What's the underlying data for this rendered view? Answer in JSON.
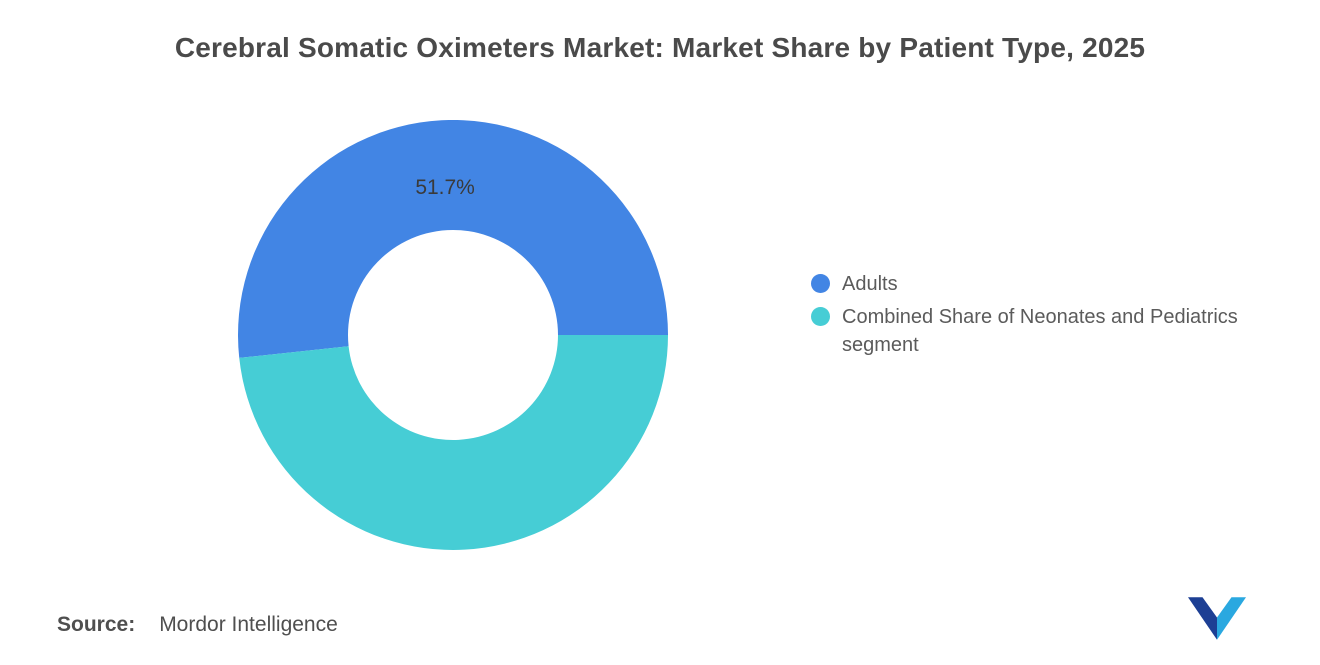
{
  "title": "Cerebral Somatic Oximeters Market: Market Share by Patient Type, 2025",
  "chart_data": {
    "type": "pie",
    "subtype": "donut",
    "categories": [
      "Adults",
      "Combined Share of Neonates and Pediatrics segment"
    ],
    "values": [
      51.7,
      48.3
    ],
    "colors": [
      "#4285E4",
      "#46CDD5"
    ],
    "data_labels": [
      "51.7%",
      ""
    ],
    "inner_radius_ratio": 0.49,
    "start_angle_deg": 0,
    "direction": "counterclockwise",
    "legend_position": "right",
    "title": "Cerebral Somatic Oximeters Market: Market Share by Patient Type, 2025"
  },
  "legend": {
    "items": [
      {
        "label": "Adults",
        "color": "#4285E4"
      },
      {
        "label": "Combined Share of Neonates and Pediatrics segment",
        "color": "#46CDD5"
      }
    ]
  },
  "source": {
    "label": "Source:",
    "value": "Mordor Intelligence"
  },
  "logo": {
    "name": "Mordor Intelligence",
    "colors": [
      "#1D3F94",
      "#2AA8E0"
    ]
  }
}
